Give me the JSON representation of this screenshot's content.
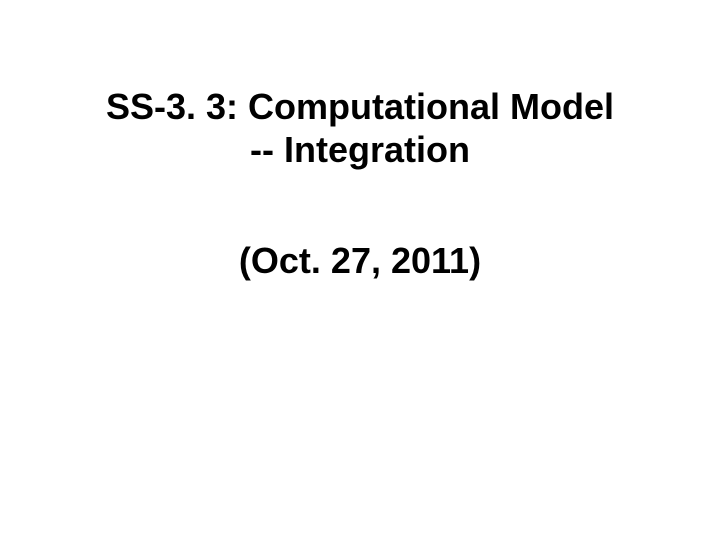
{
  "slide": {
    "title_line1": "SS-3. 3: Computational Model",
    "title_line2": "-- Integration",
    "date": "(Oct. 27, 2011)",
    "background_color": "#ffffff",
    "text_color": "#000000",
    "title_fontsize": 36,
    "date_fontsize": 36,
    "font_family": "Arial",
    "font_weight": "bold"
  }
}
